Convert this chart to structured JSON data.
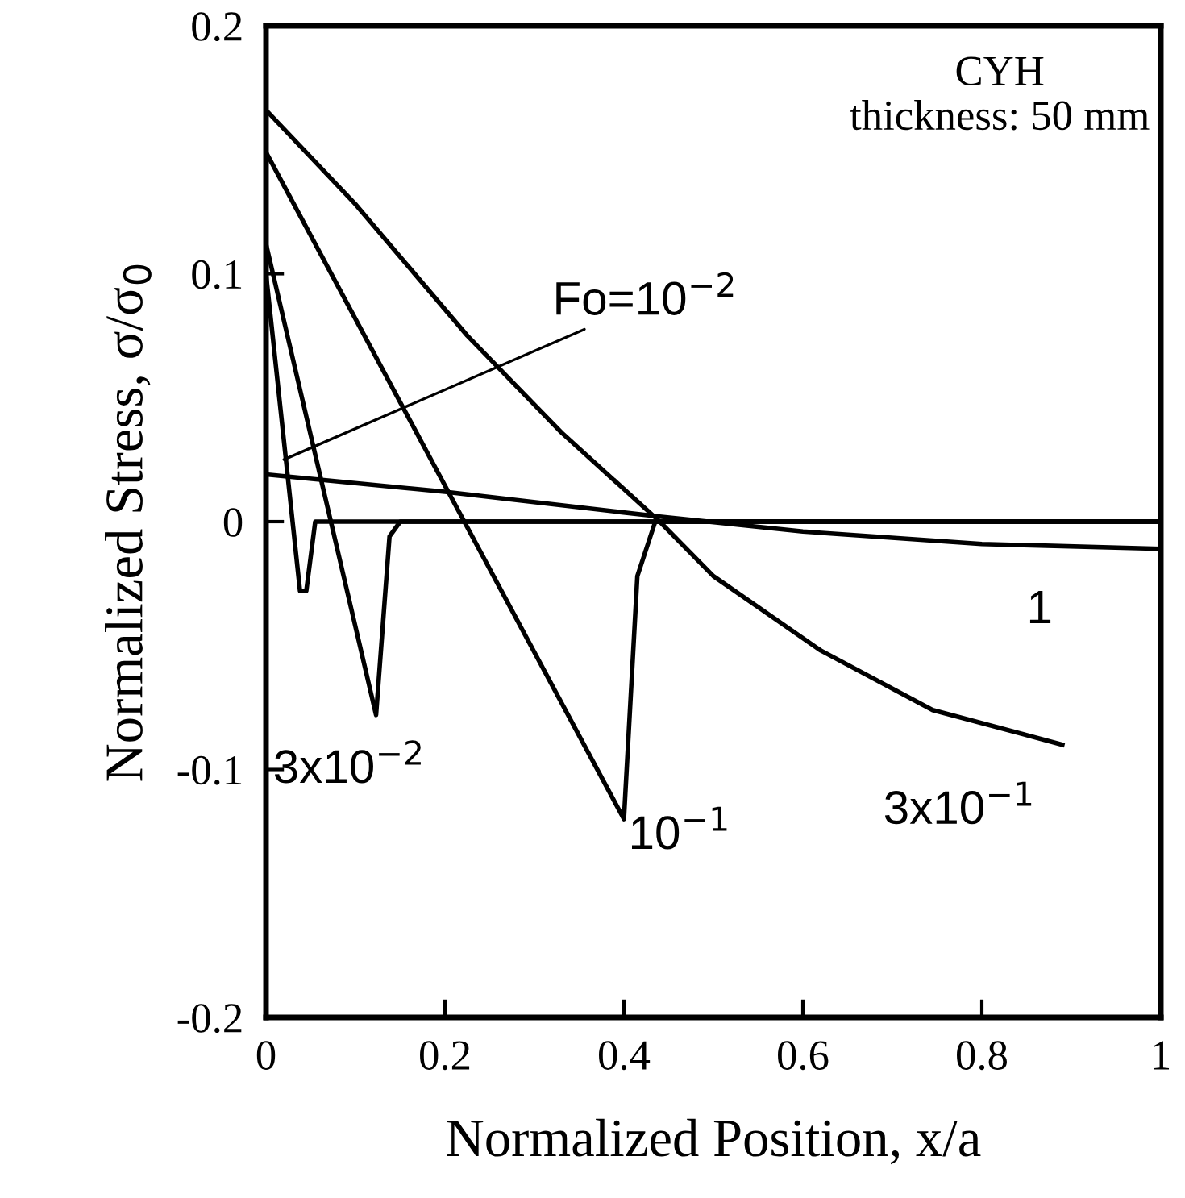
{
  "chart_data": {
    "type": "line",
    "xlabel": "Normalized Position, x/a",
    "ylabel": "Normalized Stress, σ/σ$_{0}$",
    "xlim": [
      0,
      1
    ],
    "ylim": [
      -0.2,
      0.2
    ],
    "xticks": [
      0,
      0.2,
      0.4,
      0.6,
      0.8,
      1
    ],
    "yticks": [
      -0.2,
      -0.1,
      0,
      0.1,
      0.2
    ],
    "grid": false,
    "legend": false,
    "marker": "none",
    "line_style": "solid",
    "series": [
      {
        "color": "#000000",
        "x": [
          0,
          0.038,
          0.045,
          0.055,
          1
        ],
        "values": [
          0.1,
          -0.028,
          -0.028,
          0,
          0
        ]
      },
      {
        "color": "#000000",
        "x": [
          0,
          0.123,
          0.138,
          0.15,
          1
        ],
        "values": [
          0.112,
          -0.078,
          -0.006,
          0,
          0
        ]
      },
      {
        "color": "#000000",
        "x": [
          0,
          0.4,
          0.415,
          0.435,
          1
        ],
        "values": [
          0.149,
          -0.12,
          -0.022,
          0,
          0
        ]
      },
      {
        "color": "#000000",
        "x": [
          0,
          0.1,
          0.225,
          0.33,
          0.44,
          0.5,
          0.62,
          0.745,
          0.89
        ],
        "values": [
          0.166,
          0.128,
          0.075,
          0.036,
          0,
          -0.022,
          -0.052,
          -0.076,
          -0.09
        ]
      },
      {
        "color": "#000000",
        "x": [
          0,
          0.2,
          0.44,
          0.6,
          0.8,
          1
        ],
        "values": [
          0.019,
          0.012,
          0.002,
          -0.004,
          -0.009,
          -0.011
        ]
      }
    ],
    "annotations": [
      {
        "text": "Fo=10$^{−2}$",
        "x": 0.02,
        "y": 0.025
      },
      {
        "text": "3x10$^{−2}$",
        "x": 0.123,
        "y": -0.078
      },
      {
        "text": "10$^{−1}$",
        "x": 0.4,
        "y": -0.12
      },
      {
        "text": "3x10$^{−1}$",
        "x": 0.89,
        "y": -0.09
      },
      {
        "text": "1",
        "x": 0.85,
        "y": -0.009
      },
      "CYH\nthickness: 50 mm"
    ]
  }
}
